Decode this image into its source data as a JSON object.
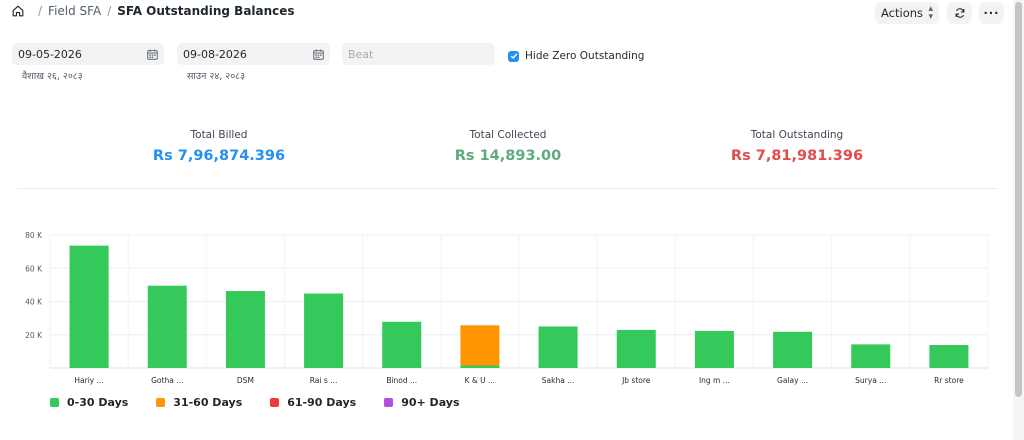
{
  "breadcrumb": {
    "home_icon": "home-icon",
    "sep": "/",
    "module": "Field SFA",
    "page": "SFA Outstanding Balances"
  },
  "toolbar": {
    "actions_label": "Actions",
    "refresh_icon": "refresh-icon",
    "more_label": "···"
  },
  "filters": {
    "from_date": "09-05-2026",
    "from_date_nepali": "वैशाख २६, २०८३",
    "to_date": "09-08-2026",
    "to_date_nepali": "साउन २४, २०८३",
    "beat_placeholder": "Beat",
    "hide_zero_label": "Hide Zero Outstanding",
    "hide_zero_checked": true
  },
  "summary": {
    "billed_label": "Total Billed",
    "billed_value": "Rs 7,96,874.396",
    "collected_label": "Total Collected",
    "collected_value": "Rs 14,893.00",
    "outstanding_label": "Total Outstanding",
    "outstanding_value": "Rs 7,81,981.396"
  },
  "colors": {
    "billed": "#2490ef",
    "collected": "#5fa980",
    "outstanding": "#e24c4c",
    "series_0_30": "#35c85a",
    "series_31_60": "#ff9500",
    "series_61_90": "#ef3a3a",
    "series_90_plus": "#b04fe0"
  },
  "chart_data": {
    "type": "bar",
    "stacked": true,
    "categories": [
      "Hariy ...",
      "Gotha ...",
      "DSM",
      "Rai s ...",
      "Binod ...",
      "K & U ...",
      "Sakha ...",
      "Jb store",
      "Ing m ...",
      "Galay ...",
      "Surya ...",
      "Rr store"
    ],
    "series": [
      {
        "name": "0-30 Days",
        "values": [
          73600,
          49500,
          46300,
          44800,
          27800,
          1500,
          25000,
          22900,
          22300,
          21800,
          14200,
          13800
        ]
      },
      {
        "name": "31-60 Days",
        "values": [
          0,
          0,
          0,
          0,
          0,
          24200,
          0,
          0,
          0,
          0,
          0,
          0
        ]
      },
      {
        "name": "61-90 Days",
        "values": [
          0,
          0,
          0,
          0,
          0,
          0,
          0,
          0,
          0,
          0,
          0,
          0
        ]
      },
      {
        "name": "90+ Days",
        "values": [
          0,
          0,
          0,
          0,
          0,
          0,
          0,
          0,
          0,
          0,
          0,
          0
        ]
      }
    ],
    "yticks": [
      "20 K",
      "40 K",
      "60 K",
      "80 K"
    ],
    "ylim": [
      0,
      80000
    ],
    "grid": true,
    "legend": "bottom-left"
  }
}
